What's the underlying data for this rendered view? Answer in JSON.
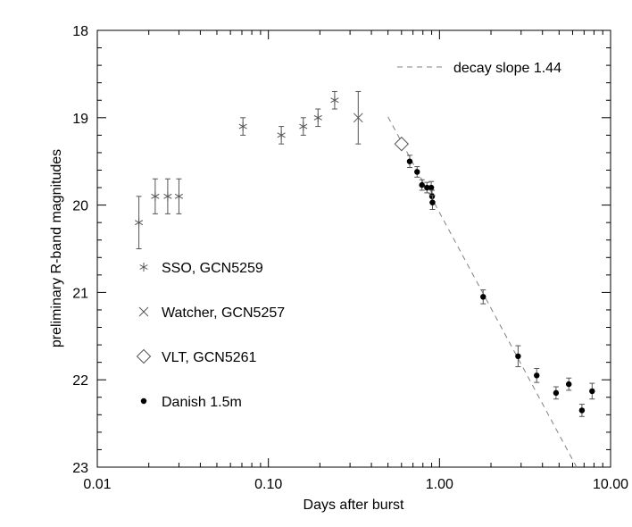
{
  "chart_data": {
    "type": "scatter",
    "xlabel": "Days after burst",
    "ylabel": "preliminary R-band magnitudes",
    "x_scale": "log",
    "xlim": [
      0.01,
      10.0
    ],
    "ylim": [
      23,
      18
    ],
    "y_inverted": true,
    "x_ticks": [
      "0.01",
      "0.10",
      "1.00",
      "10.00"
    ],
    "y_ticks": [
      "18",
      "19",
      "20",
      "21",
      "22",
      "23"
    ],
    "grid": false,
    "legend_position": "left",
    "fit_line": {
      "label": "decay slope 1.44",
      "style": "dashed",
      "color": "#808080",
      "points": [
        [
          0.5,
          18.99
        ],
        [
          6.33,
          23.0
        ]
      ]
    },
    "series": [
      {
        "name": "SSO, GCN5259",
        "marker": "asterisk",
        "color": "#555555",
        "points": [
          {
            "x": 0.0175,
            "y": 20.2,
            "err": 0.3
          },
          {
            "x": 0.0218,
            "y": 19.9,
            "err": 0.2
          },
          {
            "x": 0.0258,
            "y": 19.9,
            "err": 0.2
          },
          {
            "x": 0.03,
            "y": 19.9,
            "err": 0.2
          },
          {
            "x": 0.071,
            "y": 19.1,
            "err": 0.1
          },
          {
            "x": 0.119,
            "y": 19.2,
            "err": 0.1
          },
          {
            "x": 0.16,
            "y": 19.1,
            "err": 0.1
          },
          {
            "x": 0.195,
            "y": 19.0,
            "err": 0.1
          },
          {
            "x": 0.244,
            "y": 18.8,
            "err": 0.1
          }
        ]
      },
      {
        "name": "Watcher, GCN5257",
        "marker": "x",
        "color": "#555555",
        "points": [
          {
            "x": 0.335,
            "y": 19.0,
            "err": 0.3
          }
        ]
      },
      {
        "name": "VLT, GCN5261",
        "marker": "diamond",
        "color": "#555555",
        "points": [
          {
            "x": 0.6,
            "y": 19.3,
            "err": 0
          }
        ]
      },
      {
        "name": "Danish 1.5m",
        "marker": "filled-circle",
        "color": "#000000",
        "points": [
          {
            "x": 0.67,
            "y": 19.5,
            "err": 0.07
          },
          {
            "x": 0.74,
            "y": 19.62,
            "err": 0.06
          },
          {
            "x": 0.79,
            "y": 19.77,
            "err": 0.06
          },
          {
            "x": 0.845,
            "y": 19.8,
            "err": 0.06
          },
          {
            "x": 0.895,
            "y": 19.8,
            "err": 0.07
          },
          {
            "x": 0.905,
            "y": 19.9,
            "err": 0.07
          },
          {
            "x": 0.91,
            "y": 19.97,
            "err": 0.08
          },
          {
            "x": 1.8,
            "y": 21.05,
            "err": 0.08
          },
          {
            "x": 2.88,
            "y": 21.73,
            "err": 0.12
          },
          {
            "x": 3.7,
            "y": 21.95,
            "err": 0.08
          },
          {
            "x": 4.8,
            "y": 22.15,
            "err": 0.07
          },
          {
            "x": 5.7,
            "y": 22.05,
            "err": 0.07
          },
          {
            "x": 6.8,
            "y": 22.35,
            "err": 0.07
          },
          {
            "x": 7.8,
            "y": 22.13,
            "err": 0.09
          }
        ]
      }
    ]
  }
}
